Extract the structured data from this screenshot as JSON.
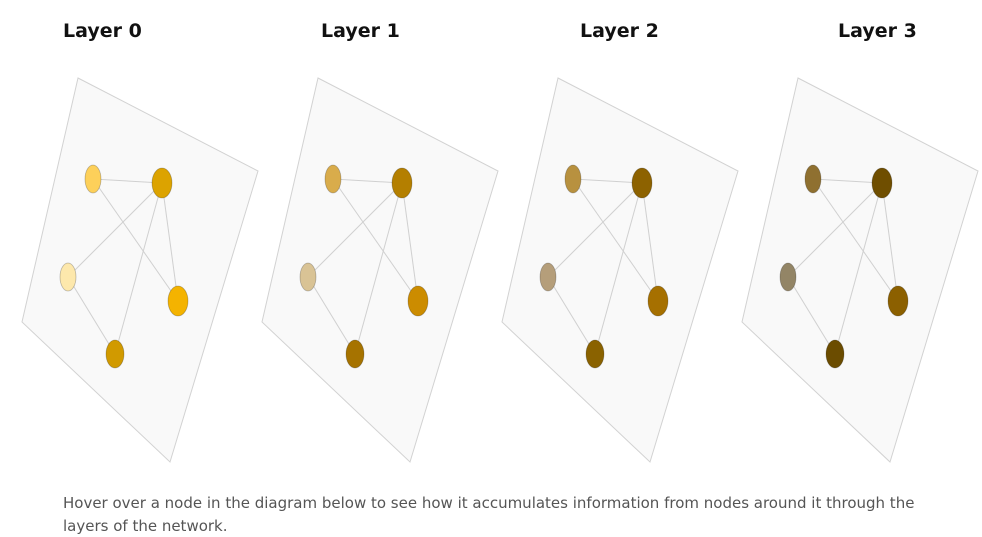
{
  "layers": [
    {
      "title": "Layer 0",
      "node_colors": [
        "#fdd05a",
        "#dca300",
        "#fde8ac",
        "#f4b300",
        "#d19a00"
      ]
    },
    {
      "title": "Layer 1",
      "node_colors": [
        "#d9ac4b",
        "#b47f00",
        "#d9c395",
        "#cc8c00",
        "#a67300"
      ]
    },
    {
      "title": "Layer 2",
      "node_colors": [
        "#b8913f",
        "#8d6200",
        "#b59e7a",
        "#a67000",
        "#8a6200"
      ]
    },
    {
      "title": "Layer 3",
      "node_colors": [
        "#8f7030",
        "#6f4e00",
        "#938566",
        "#8c6000",
        "#6b4c00"
      ]
    }
  ],
  "graph": {
    "node_count": 5,
    "edges": [
      [
        0,
        1
      ],
      [
        0,
        3
      ],
      [
        1,
        2
      ],
      [
        1,
        4
      ],
      [
        1,
        3
      ],
      [
        2,
        4
      ]
    ]
  },
  "caption": "Hover over a node in the diagram below to see how it accumulates information from nodes around it through the layers of the network."
}
